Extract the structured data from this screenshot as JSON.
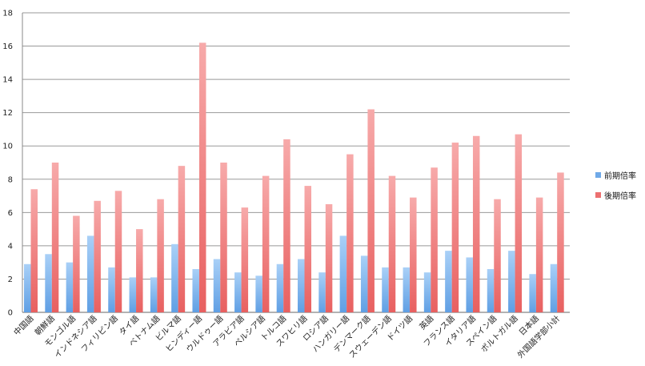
{
  "chart_data": {
    "type": "bar",
    "categories": [
      "中国語",
      "朝鮮語",
      "モンゴル語",
      "インドネシア語",
      "フィリピン語",
      "タイ語",
      "ベトナム語",
      "ビルマ語",
      "ヒンディー語",
      "ウルドゥー語",
      "アラビア語",
      "ペルシア語",
      "トルコ語",
      "スワヒリ語",
      "ロシア語",
      "ハンガリー語",
      "デンマーク語",
      "スウェーデン語",
      "ドイツ語",
      "英語",
      "フランス語",
      "イタリア語",
      "スペイン語",
      "ポルトガル語",
      "日本語",
      "外国語学部小計"
    ],
    "series": [
      {
        "name": "前期倍率",
        "color": "#8fc0f2",
        "values": [
          2.9,
          3.5,
          3.0,
          4.6,
          2.7,
          2.1,
          2.1,
          4.1,
          2.6,
          3.2,
          2.4,
          2.2,
          2.9,
          3.2,
          2.4,
          4.6,
          3.4,
          2.7,
          2.7,
          2.4,
          3.7,
          3.3,
          2.6,
          3.7,
          2.3,
          2.9
        ]
      },
      {
        "name": "後期倍率",
        "color": "#f28c8c",
        "values": [
          7.4,
          9.0,
          5.8,
          6.7,
          7.3,
          5.0,
          6.8,
          8.8,
          16.2,
          9.0,
          6.3,
          8.2,
          10.4,
          7.6,
          6.5,
          9.5,
          12.2,
          8.2,
          6.9,
          8.7,
          10.2,
          10.6,
          6.8,
          10.7,
          6.9,
          8.4
        ]
      }
    ],
    "ylim": [
      0,
      18
    ],
    "yticks": [
      0,
      2,
      4,
      6,
      8,
      10,
      12,
      14,
      16,
      18
    ],
    "grid": true,
    "legend_position": "right"
  }
}
